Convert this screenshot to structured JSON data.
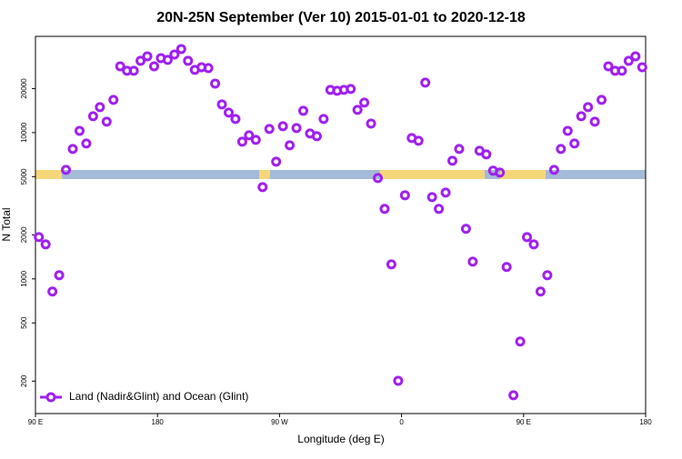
{
  "chart_data": {
    "type": "scatter",
    "title": "20N-25N September (Ver 10)   2015-01-01 to 2020-12-18",
    "x_label": "Longitude (deg E)",
    "y_label": "N Total",
    "log_y": true,
    "legend": "bottom-left",
    "xlim": [
      90,
      540
    ],
    "xticks": [
      {
        "value": 90,
        "label": "90 E"
      },
      {
        "value": 180,
        "label": "180"
      },
      {
        "value": 270,
        "label": "90 W"
      },
      {
        "value": 360,
        "label": "0"
      },
      {
        "value": 450,
        "label": "90 E"
      },
      {
        "value": 540,
        "label": "180"
      }
    ],
    "ylim": [
      120,
      45500
    ],
    "yticks": [
      200,
      500,
      1000,
      2000,
      5000,
      10000,
      20000
    ],
    "series": [
      {
        "name": "Land (Nadir&Glint) and Ocean (Glint)",
        "color": "#a020f0",
        "x": [
          92.5,
          97.5,
          102.5,
          107.5,
          112.5,
          117.5,
          122.5,
          127.5,
          132.5,
          137.5,
          142.5,
          147.5,
          152.5,
          157.5,
          162.5,
          167.5,
          172.5,
          177.5,
          182.5,
          187.5,
          192.5,
          197.5,
          202.5,
          207.5,
          212.5,
          217.5,
          222.5,
          227.5,
          232.5,
          237.5,
          242.5,
          247.5,
          252.5,
          257.5,
          262.5,
          267.5,
          272.5,
          277.5,
          282.5,
          287.5,
          292.5,
          297.5,
          302.5,
          307.5,
          312.5,
          317.5,
          322.5,
          327.5,
          332.5,
          337.5,
          342.5,
          347.5,
          352.5,
          357.5,
          362.5,
          367.5,
          372.5,
          377.5,
          382.5,
          387.5,
          392.5,
          397.5,
          402.5,
          407.5,
          412.5,
          417.5,
          422.5,
          427.5,
          432.5,
          437.5,
          442.5,
          447.5,
          452.5,
          457.5,
          462.5,
          467.5,
          472.5,
          477.5,
          482.5,
          487.5,
          492.5,
          497.5,
          502.5,
          507.5,
          512.5,
          517.5,
          522.5,
          527.5,
          532.5,
          537.5
        ],
        "values": [
          1930,
          1720,
          819,
          1059,
          5560,
          7730,
          10280,
          8420,
          12940,
          14930,
          11870,
          16740,
          28400,
          26450,
          26450,
          30950,
          33240,
          28400,
          32300,
          31400,
          34200,
          37270,
          30950,
          26830,
          27990,
          27600,
          21640,
          15580,
          13700,
          12400,
          8670,
          9580,
          8920,
          4240,
          10590,
          6330,
          11050,
          8190,
          10740,
          14090,
          9860,
          9440,
          12400,
          19590,
          19310,
          19590,
          19870,
          14300,
          16030,
          11530,
          4890,
          3010,
          1257,
          201,
          3730,
          9180,
          8790,
          21960,
          3620,
          3010,
          3890,
          6420,
          7730,
          2200,
          1312,
          7510,
          7100,
          5490,
          5330,
          1205,
          160,
          373,
          1930,
          1720,
          819,
          1059,
          5560,
          7730,
          10280,
          8420,
          12940,
          14930,
          11870,
          16740,
          28400,
          26450,
          26450,
          30950,
          33240,
          27990
        ]
      }
    ]
  }
}
